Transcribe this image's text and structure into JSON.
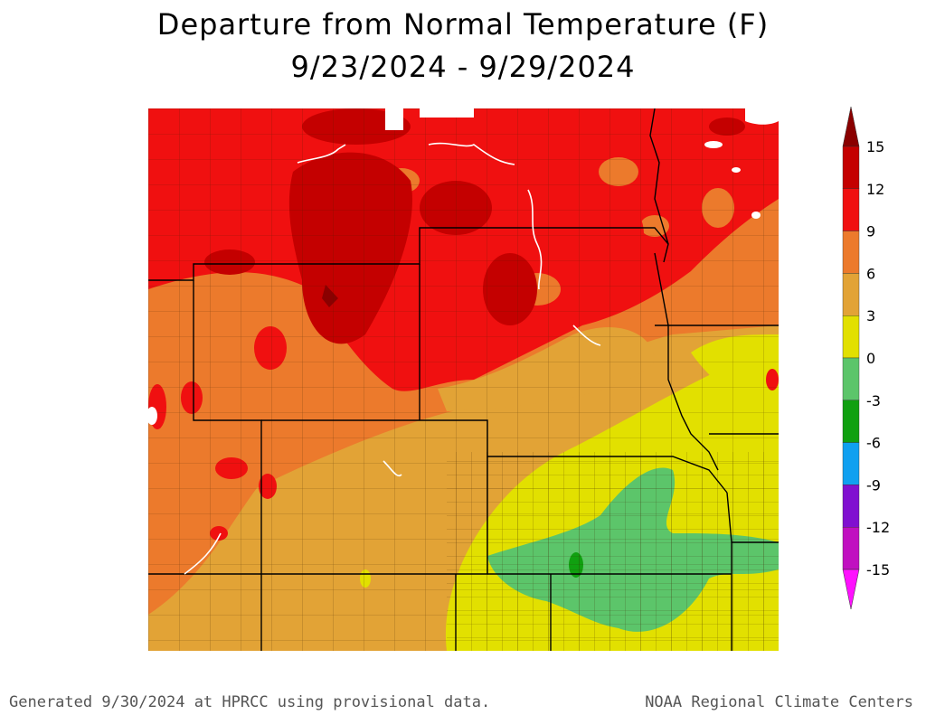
{
  "title_line1": "Departure from Normal Temperature (F)",
  "title_line2": "9/23/2024 - 9/29/2024",
  "legend": {
    "labels": [
      "15",
      "12",
      "9",
      "6",
      "3",
      "0",
      "-3",
      "-6",
      "-9",
      "-12",
      "-15"
    ],
    "bins": [
      {
        "range": "12 to 15",
        "color": "#c40000"
      },
      {
        "range": "9 to 12",
        "color": "#f01010"
      },
      {
        "range": "6 to 9",
        "color": "#ec7a2c"
      },
      {
        "range": "3 to 6",
        "color": "#e2a336"
      },
      {
        "range": "0 to 3",
        "color": "#e2e000"
      },
      {
        "range": "-3 to 0",
        "color": "#5cc56a"
      },
      {
        "range": "-6 to -3",
        "color": "#10a010"
      },
      {
        "range": "-9 to -6",
        "color": "#10a0f0"
      },
      {
        "range": "-12 to -9",
        "color": "#8010d0"
      },
      {
        "range": "-15 to -12",
        "color": "#c010c0"
      }
    ],
    "above_max_color": "#8a0000",
    "below_min_color": "#ff10ff"
  },
  "footer_left": "Generated 9/30/2024 at HPRCC using provisional data.",
  "footer_right": "NOAA Regional Climate Centers"
}
